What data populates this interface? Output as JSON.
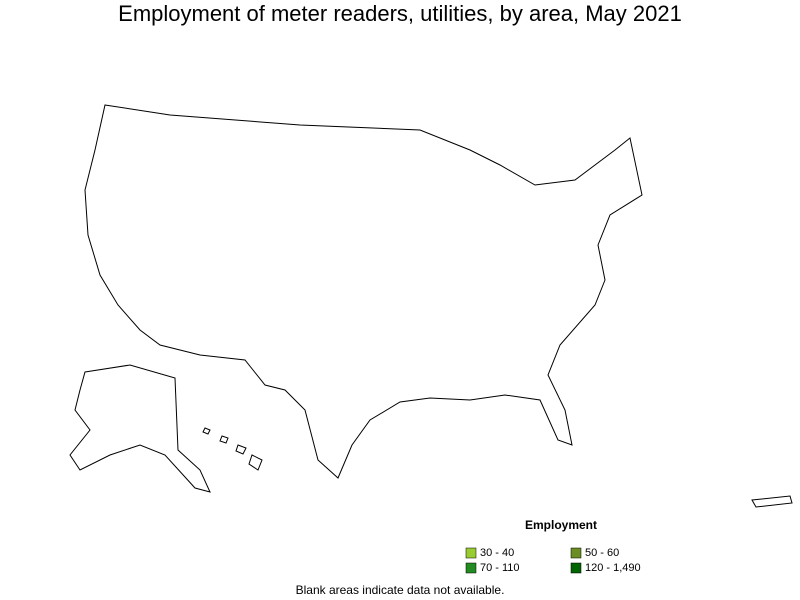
{
  "title": "Employment of meter readers, utilities, by area, May 2021",
  "legend": {
    "title": "Employment",
    "items": [
      {
        "label": "30 - 40",
        "color": "#99cc33"
      },
      {
        "label": "50 - 60",
        "color": "#6b8e23"
      },
      {
        "label": "70 - 110",
        "color": "#228b22"
      },
      {
        "label": "120 - 1,490",
        "color": "#006400"
      }
    ]
  },
  "note": "Blank areas indicate data not available."
}
